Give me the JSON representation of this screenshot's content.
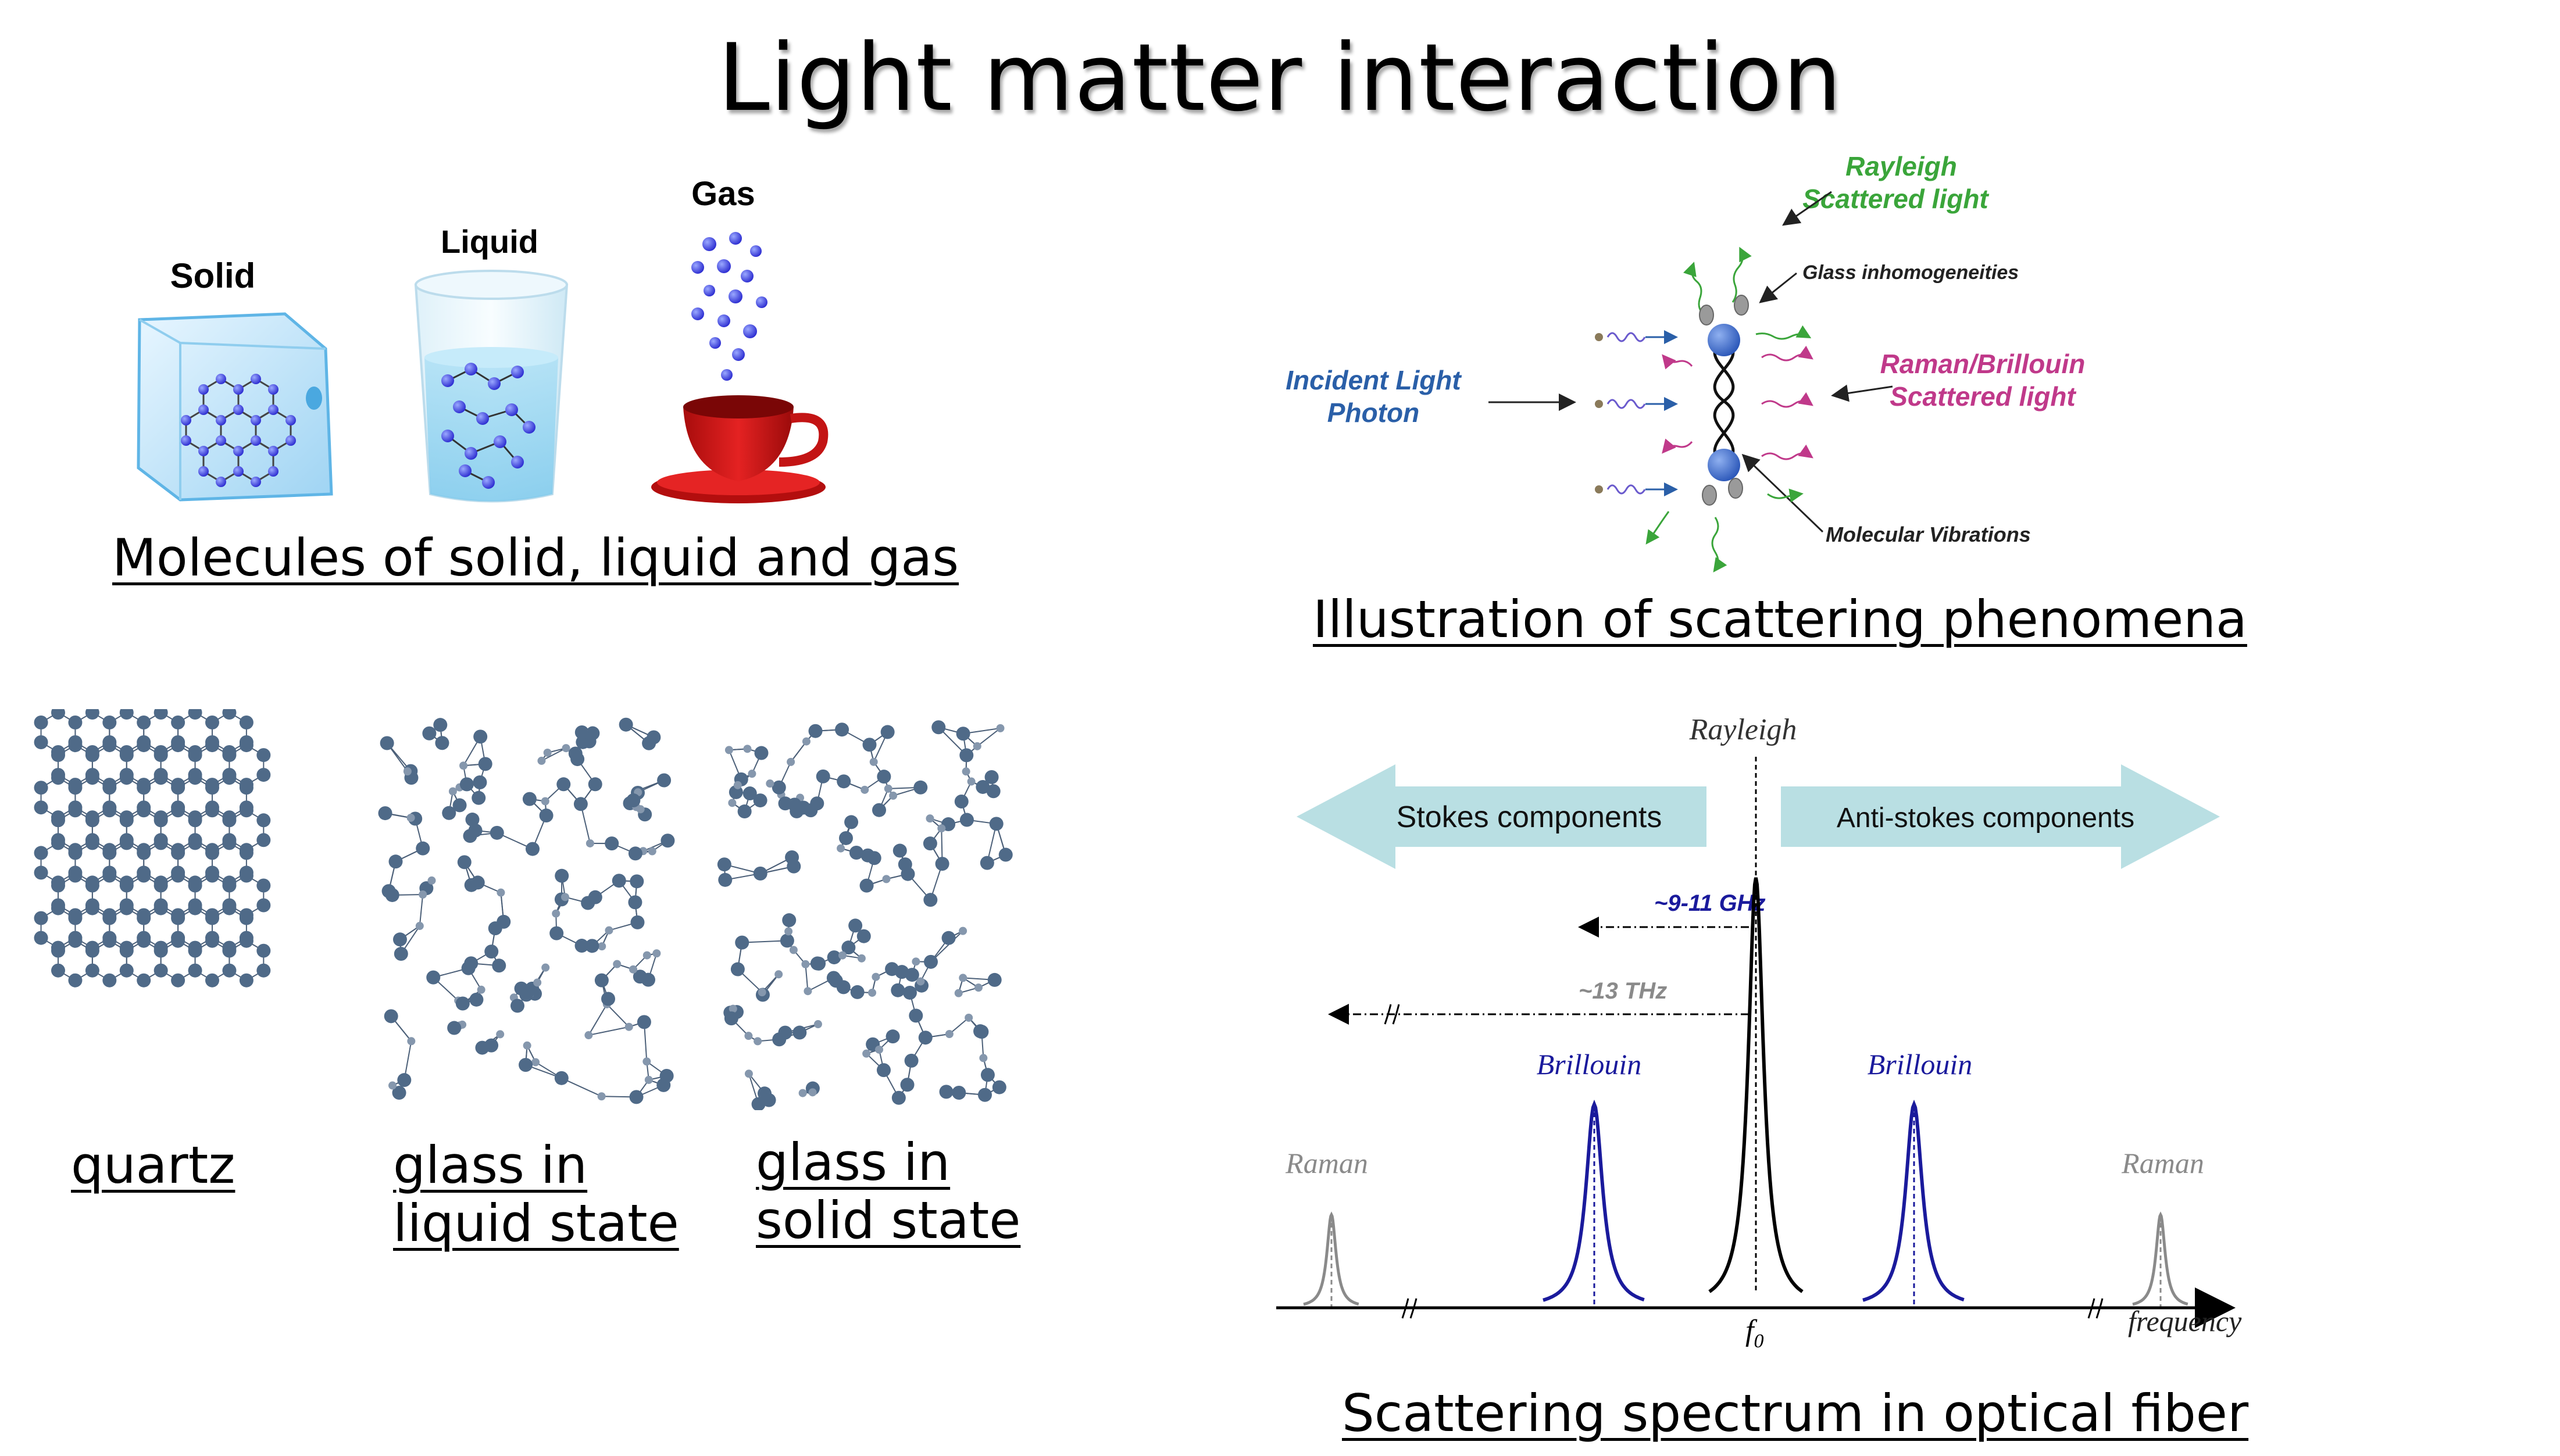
{
  "title": "Light matter interaction",
  "states": {
    "caption": "Molecules of solid, liquid and gas",
    "solid_label": "Solid",
    "liquid_label": "Liquid",
    "gas_label": "Gas"
  },
  "structures": {
    "quartz": "quartz",
    "glass_liquid_line1": "glass in",
    "glass_liquid_line2": "liquid state",
    "glass_solid_line1": "glass in",
    "glass_solid_line2": "solid state"
  },
  "scattering": {
    "caption": "Illustration of scattering phenomena",
    "rayleigh_line1": "Rayleigh",
    "rayleigh_line2": "Scattered light",
    "glass_inhomogeneities": "Glass inhomogeneities",
    "incident_line1": "Incident Light",
    "incident_line2": "Photon",
    "raman_brillouin_line1": "Raman/Brillouin",
    "raman_brillouin_line2": "Scattered light",
    "molecular_vibrations": "Molecular Vibrations",
    "colors": {
      "rayleigh": "#3aa53a",
      "incident": "#2a5fa8",
      "raman": "#c0398a",
      "molecule": "#3d6fc4"
    }
  },
  "spectrum": {
    "caption": "Scattering spectrum in optical fiber",
    "rayleigh": "Rayleigh",
    "stokes": "Stokes components",
    "antistokes": "Anti-stokes components",
    "ghz": "~9-11 GHz",
    "thz": "~13 THz",
    "brillouin_left": "Brillouin",
    "brillouin_right": "Brillouin",
    "raman_left": "Raman",
    "raman_right": "Raman",
    "f0": "f",
    "f0_sub": "0",
    "frequency": "frequency",
    "colors": {
      "arrow": "#b9dfe3",
      "brillouin": "#1a1a9c",
      "raman": "#8a8a8a",
      "rayleigh": "#000000"
    }
  }
}
